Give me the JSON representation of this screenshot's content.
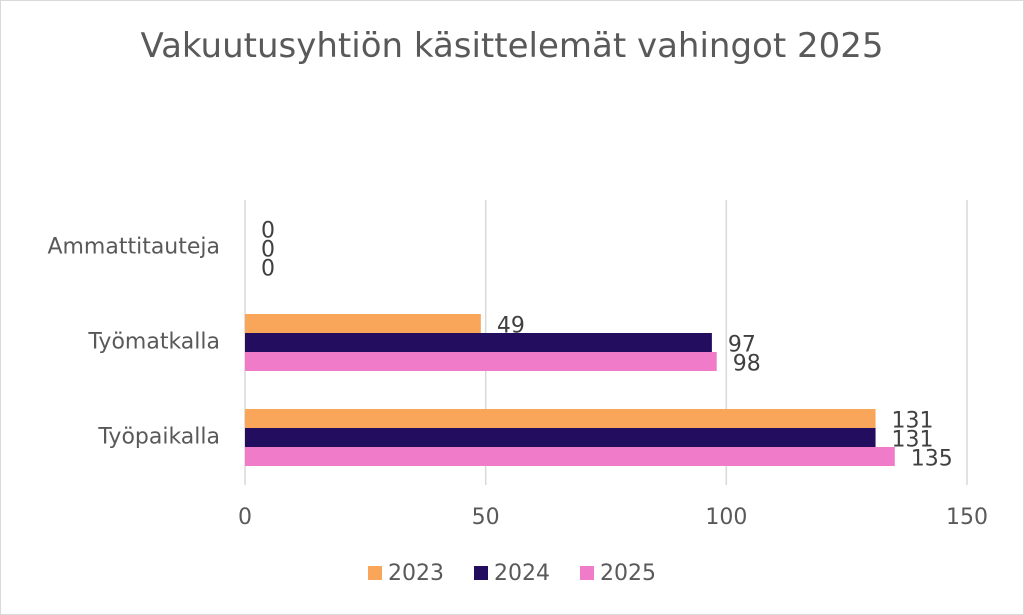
{
  "chart_data": {
    "type": "bar",
    "orientation": "horizontal",
    "title": "Vakuutusyhtiön käsittelemät vahingot 2025",
    "categories": [
      "Ammattitauteja",
      "Työmatkalla",
      "Työpaikalla"
    ],
    "series": [
      {
        "name": "2023",
        "color": "#f9a65a",
        "values": [
          0,
          49,
          131
        ]
      },
      {
        "name": "2024",
        "color": "#220d5e",
        "values": [
          0,
          97,
          131
        ]
      },
      {
        "name": "2025",
        "color": "#f07cc9",
        "values": [
          0,
          98,
          135
        ]
      }
    ],
    "xlim": [
      0,
      150
    ],
    "xticks": [
      0,
      50,
      100,
      150
    ],
    "grid": true,
    "legend": "bottom"
  }
}
